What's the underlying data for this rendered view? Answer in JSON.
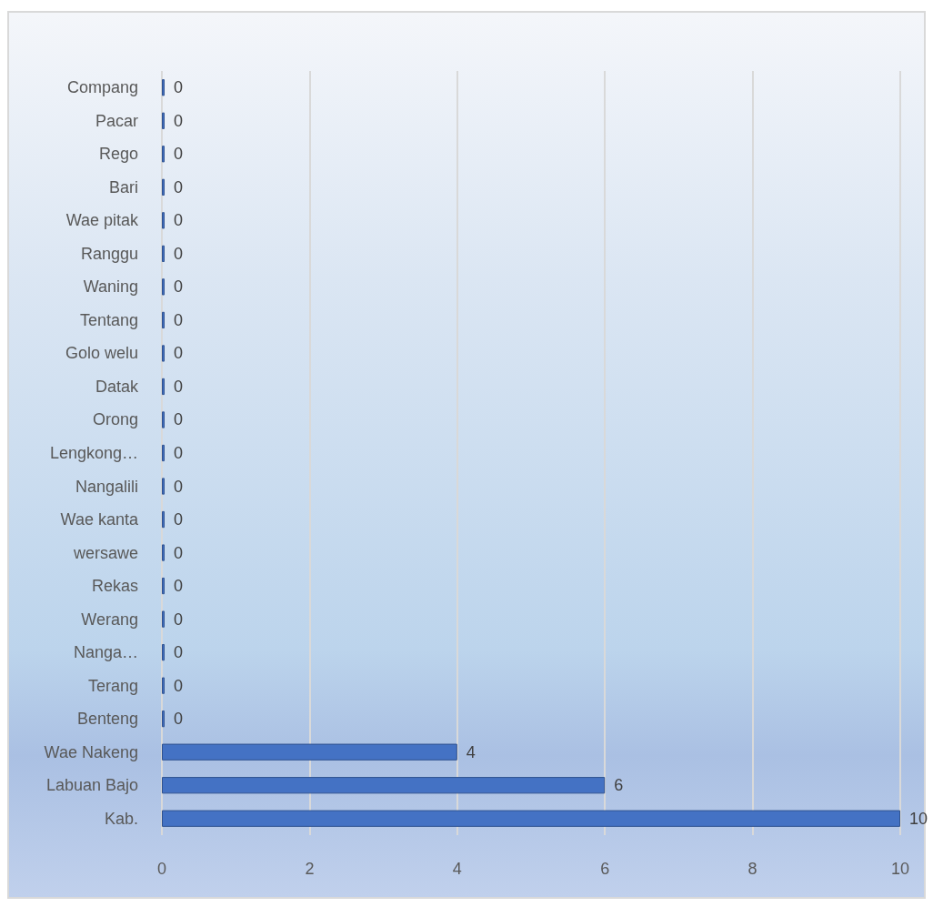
{
  "chart_data": {
    "type": "bar",
    "orientation": "horizontal",
    "categories": [
      "Compang",
      "Pacar",
      "Rego",
      "Bari",
      "Wae pitak",
      "Ranggu",
      "Waning",
      "Tentang",
      "Golo welu",
      "Datak",
      "Orong",
      "Lengkong…",
      "Nangalili",
      "Wae kanta",
      "wersawe",
      "Rekas",
      "Werang",
      "Nanga…",
      "Terang",
      "Benteng",
      "Wae Nakeng",
      "Labuan Bajo",
      "Kab."
    ],
    "values": [
      0,
      0,
      0,
      0,
      0,
      0,
      0,
      0,
      0,
      0,
      0,
      0,
      0,
      0,
      0,
      0,
      0,
      0,
      0,
      0,
      4,
      6,
      10
    ],
    "color": "#4472c4",
    "xlim": [
      0,
      10
    ],
    "xticks": [
      0,
      2,
      4,
      6,
      8,
      10
    ],
    "grid": "x",
    "data_labels": true
  }
}
